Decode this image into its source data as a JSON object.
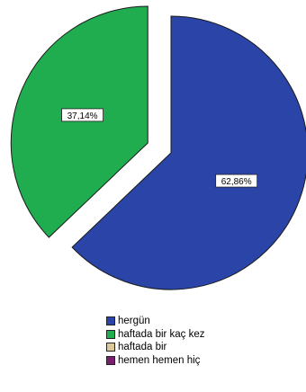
{
  "chart_data": {
    "type": "pie",
    "title": "",
    "slices": [
      {
        "label": "hergün",
        "value": 62.86,
        "value_label": "62,86%",
        "color": "#2a44a8",
        "exploded": false
      },
      {
        "label": "haftada bir kaç kez",
        "value": 37.14,
        "value_label": "37,14%",
        "color": "#1fad4f",
        "exploded": true
      },
      {
        "label": "haftada bir",
        "value": 0,
        "value_label": "",
        "color": "#d8c89a",
        "exploded": false
      },
      {
        "label": "hemen hemen hiç",
        "value": 0,
        "value_label": "",
        "color": "#7a1f6e",
        "exploded": false
      }
    ],
    "legend": {
      "placement": "bottom",
      "items": [
        "hergün",
        "haftada bir kaç kez",
        "haftada bir",
        "hemen hemen hiç"
      ]
    },
    "grid": false
  }
}
